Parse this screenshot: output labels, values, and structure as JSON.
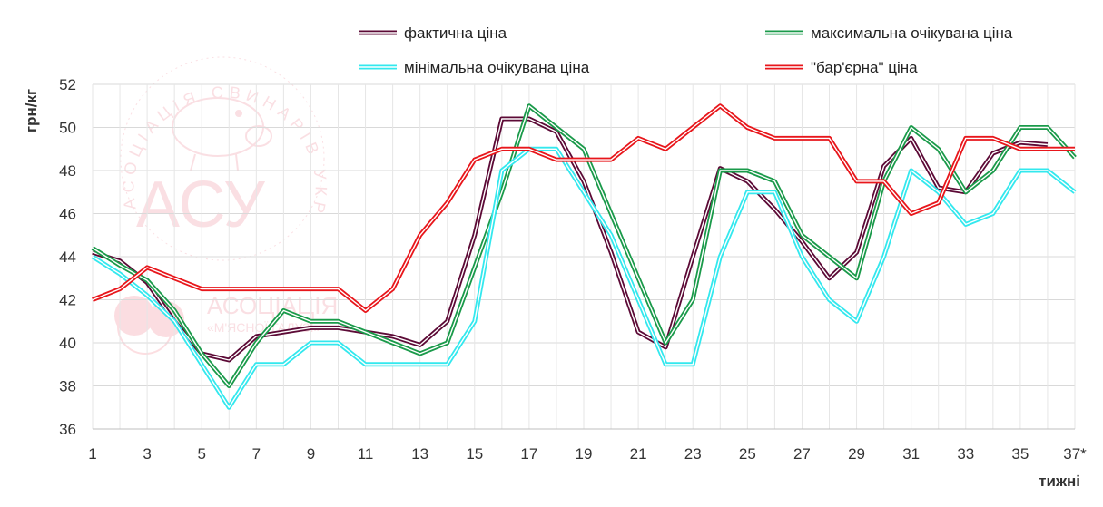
{
  "chart_data": {
    "type": "line",
    "title": "",
    "ylabel": "грн/кг",
    "xlabel": "тижні",
    "ylim": [
      36,
      52
    ],
    "yticks": [
      36,
      38,
      40,
      42,
      44,
      46,
      48,
      50,
      52
    ],
    "x": [
      1,
      2,
      3,
      4,
      5,
      6,
      7,
      8,
      9,
      10,
      11,
      12,
      13,
      14,
      15,
      16,
      17,
      18,
      19,
      20,
      21,
      22,
      23,
      24,
      25,
      26,
      27,
      28,
      29,
      30,
      31,
      32,
      33,
      34,
      35,
      36,
      37
    ],
    "xtick_labels": [
      "1",
      "3",
      "5",
      "7",
      "9",
      "11",
      "13",
      "15",
      "17",
      "19",
      "21",
      "23",
      "25",
      "27",
      "29",
      "31",
      "33",
      "35",
      "37*"
    ],
    "legend": "top",
    "series": [
      {
        "name": "фактична ціна",
        "color": "#5c0a36",
        "values": [
          44.2,
          43.8,
          42.8,
          41.0,
          39.5,
          39.2,
          40.3,
          40.5,
          40.7,
          40.7,
          40.5,
          40.3,
          39.9,
          41.0,
          45.0,
          50.4,
          50.4,
          49.8,
          47.5,
          44.2,
          40.5,
          39.8,
          44.0,
          48.1,
          47.5,
          46.2,
          44.7,
          43.0,
          44.2,
          48.2,
          49.5,
          47.2,
          47.0,
          48.8,
          49.3,
          49.2,
          null
        ]
      },
      {
        "name": "максимальна очікувана ціна",
        "color": "#1a9a4a",
        "values": [
          44.4,
          43.6,
          42.9,
          41.5,
          39.5,
          38.0,
          40.0,
          41.5,
          41.0,
          41.0,
          40.5,
          40.0,
          39.5,
          40.0,
          43.5,
          47.0,
          51.0,
          50.0,
          49.0,
          46.0,
          43.0,
          40.0,
          42.0,
          48.0,
          48.0,
          47.5,
          45.0,
          44.0,
          43.0,
          47.5,
          50.0,
          49.0,
          47.0,
          48.0,
          50.0,
          50.0,
          48.6
        ]
      },
      {
        "name": "мінімальна очікувана ціна",
        "color": "#33e8ee",
        "values": [
          44.0,
          43.2,
          42.2,
          41.0,
          39.0,
          37.0,
          39.0,
          39.0,
          40.0,
          40.0,
          39.0,
          39.0,
          39.0,
          39.0,
          41.0,
          48.0,
          49.0,
          49.0,
          47.0,
          45.0,
          42.0,
          39.0,
          39.0,
          44.0,
          47.0,
          47.0,
          44.0,
          42.0,
          41.0,
          44.0,
          48.0,
          47.0,
          45.5,
          46.0,
          48.0,
          48.0,
          47.0
        ]
      },
      {
        "name": "\"бар'єрна\" ціна",
        "color": "#e8161b",
        "values": [
          42.0,
          42.5,
          43.5,
          43.0,
          42.5,
          42.5,
          42.5,
          42.5,
          42.5,
          42.5,
          41.5,
          42.5,
          45.0,
          46.5,
          48.5,
          49.0,
          49.0,
          48.5,
          48.5,
          48.5,
          49.5,
          49.0,
          50.0,
          51.0,
          50.0,
          49.5,
          49.5,
          49.5,
          47.5,
          47.5,
          46.0,
          46.5,
          49.5,
          49.5,
          49.0,
          49.0,
          49.0
        ]
      }
    ]
  },
  "watermark": {
    "arc_text": "АСОЦІАЦІЯ СВИНАРІВ УКРАЇНИ",
    "logo_text": "АСУ",
    "second_text": "АСОЦІАЦІЯ",
    "second_sub": "«М'ЯСНОЇ ГАЛУЗІ»"
  }
}
